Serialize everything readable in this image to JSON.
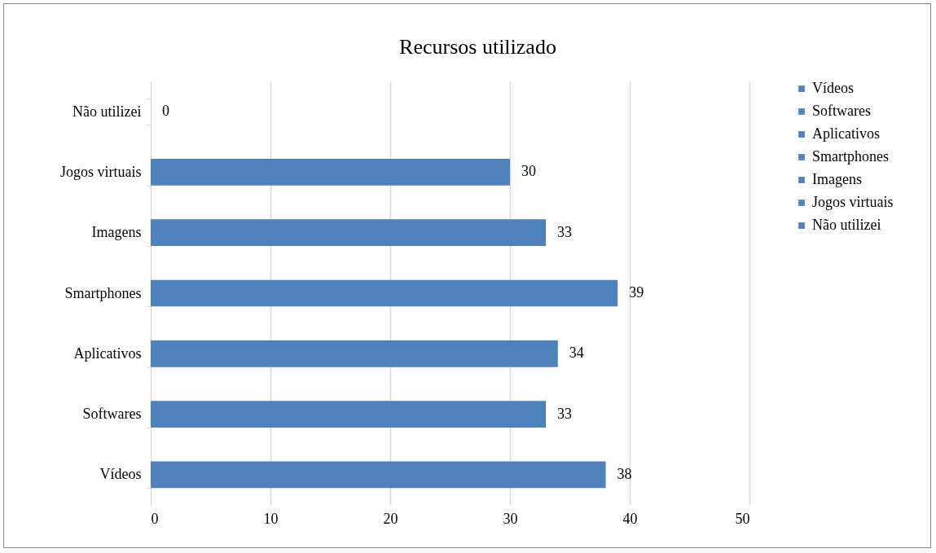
{
  "chart_data": {
    "type": "bar",
    "orientation": "horizontal",
    "title": "Recursos utilizado",
    "categories": [
      "Não utilizei",
      "Jogos virtuais",
      "Imagens",
      "Smartphones",
      "Aplicativos",
      "Softwares",
      "Vídeos"
    ],
    "series": [
      {
        "name": "Vídeos",
        "color": "#4f81bd",
        "values": [
          null,
          null,
          null,
          null,
          null,
          null,
          38
        ]
      },
      {
        "name": "Softwares",
        "color": "#4f81bd",
        "values": [
          null,
          null,
          null,
          null,
          null,
          33,
          null
        ]
      },
      {
        "name": "Aplicativos",
        "color": "#4f81bd",
        "values": [
          null,
          null,
          null,
          null,
          34,
          null,
          null
        ]
      },
      {
        "name": "Smartphones",
        "color": "#4f81bd",
        "values": [
          null,
          null,
          null,
          39,
          null,
          null,
          null
        ]
      },
      {
        "name": "Imagens",
        "color": "#4f81bd",
        "values": [
          null,
          null,
          33,
          null,
          null,
          null,
          null
        ]
      },
      {
        "name": "Jogos virtuais",
        "color": "#4f81bd",
        "values": [
          null,
          30,
          null,
          null,
          null,
          null,
          null
        ]
      },
      {
        "name": "Não utilizei",
        "color": "#4f81bd",
        "values": [
          0,
          null,
          null,
          null,
          null,
          null,
          null
        ]
      }
    ],
    "xlim": [
      0,
      50
    ],
    "xticks": [
      0,
      10,
      20,
      30,
      40,
      50
    ],
    "grid": "x",
    "data_labels": true,
    "legend": "right"
  }
}
